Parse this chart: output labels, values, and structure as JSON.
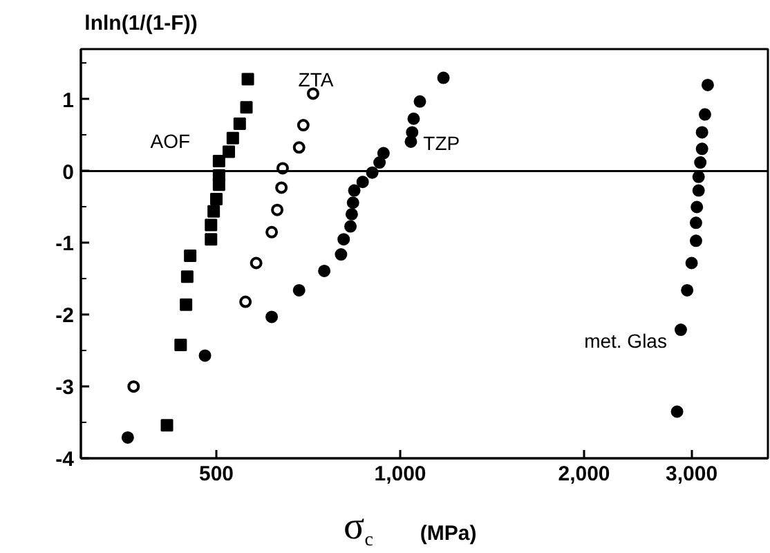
{
  "chart_data": {
    "type": "scatter",
    "xlabel": "σ$_{c}$ (MPa)",
    "ylabel": "lnln(1/(1-F))",
    "log": "x",
    "xlim": [
      300,
      4000
    ],
    "ylim": [
      -4,
      1.7
    ],
    "xticks": [
      500,
      {
        "value": 1000,
        "label": "1,000"
      },
      {
        "value": 2000,
        "label": "2,000"
      },
      {
        "value": 3000,
        "label": "3,000"
      }
    ],
    "yticks": [
      -4,
      {
        "value": -3.5,
        "label": null
      },
      -3,
      {
        "value": -2.5,
        "label": null
      },
      -2,
      {
        "value": -1.5,
        "label": null
      },
      -1,
      {
        "value": -0.5,
        "label": null
      },
      0,
      {
        "value": 0.5,
        "label": null
      },
      1,
      {
        "value": 1.5,
        "label": null
      }
    ],
    "grid": false,
    "ref_lines": [
      {
        "axis": "y",
        "value": 0,
        "label": null,
        "color": "#000000"
      }
    ],
    "series": [
      {
        "name": "AOF",
        "color": "#000000",
        "marker": "square",
        "x": [
          563,
          560,
          546,
          532,
          524,
          505,
          505,
          505,
          500,
          495,
          490,
          490,
          453,
          448,
          446,
          437,
          415
        ],
        "values": [
          1.28,
          0.89,
          0.66,
          0.46,
          0.27,
          0.14,
          -0.06,
          -0.19,
          -0.39,
          -0.56,
          -0.75,
          -0.95,
          -1.18,
          -1.47,
          -1.86,
          -2.42,
          -3.54
        ]
      },
      {
        "name": "ZTA",
        "color": "#000000",
        "marker": "circle_open",
        "x": [
          720,
          694,
          683,
          642,
          639,
          629,
          616,
          581,
          558,
          366
        ],
        "values": [
          1.08,
          0.64,
          0.33,
          0.04,
          -0.23,
          -0.54,
          -0.85,
          -1.28,
          -1.82,
          -3.0
        ]
      },
      {
        "name": "TZP",
        "color": "#000000",
        "marker": "circle",
        "x": [
          1177,
          1077,
          1052,
          1046,
          1041,
          939,
          925,
          900,
          868,
          841,
          837,
          833,
          829,
          808,
          800,
          751,
          683,
          616,
          479,
          358
        ],
        "values": [
          1.3,
          0.97,
          0.73,
          0.54,
          0.41,
          0.25,
          0.12,
          -0.02,
          -0.15,
          -0.27,
          -0.44,
          -0.6,
          -0.77,
          -0.95,
          -1.16,
          -1.39,
          -1.66,
          -2.03,
          -2.57,
          -3.71
        ]
      },
      {
        "name": "met. Glas",
        "color": "#000000",
        "marker": "circle",
        "x": [
          3188,
          3155,
          3120,
          3120,
          3100,
          3080,
          3080,
          3060,
          3050,
          3050,
          3000,
          2950,
          2880,
          2840
        ],
        "values": [
          1.2,
          0.79,
          0.54,
          0.31,
          0.12,
          -0.08,
          -0.27,
          -0.5,
          -0.72,
          -0.97,
          -1.28,
          -1.66,
          -2.21,
          -3.35
        ]
      }
    ]
  }
}
